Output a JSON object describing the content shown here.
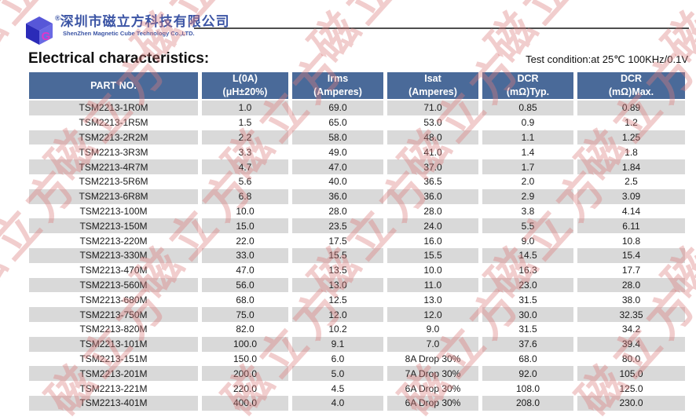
{
  "watermark": {
    "text": "磁立方",
    "color": "#dd7d7d"
  },
  "header": {
    "logo": {
      "registered_mark": "®",
      "company_cn": "深圳市磁立方科技有限公司",
      "company_en": "ShenZhen Magnetic Cube Technology Co.,LTD."
    },
    "title": "Electrical characteristics:",
    "test_condition": "Test condition:at 25℃ 100KHz/0.1V"
  },
  "table": {
    "colors": {
      "header_bg": "#4a6a99",
      "row_alt_bg": "#d9d9d9"
    },
    "columns": [
      {
        "line1": "PART NO.",
        "line2": ""
      },
      {
        "line1": "L(0A)",
        "line2": "(μH±20%)"
      },
      {
        "line1": "Irms",
        "line2": "(Amperes)"
      },
      {
        "line1": "Isat",
        "line2": "(Amperes)"
      },
      {
        "line1": "DCR",
        "line2": "(mΩ)Typ."
      },
      {
        "line1": "DCR",
        "line2": "(mΩ)Max."
      }
    ],
    "rows": [
      [
        "TSM2213-1R0M",
        "1.0",
        "69.0",
        "71.0",
        "0.85",
        "0.89"
      ],
      [
        "TSM2213-1R5M",
        "1.5",
        "65.0",
        "53.0",
        "0.9",
        "1.2"
      ],
      [
        "TSM2213-2R2M",
        "2.2",
        "58.0",
        "48.0",
        "1.1",
        "1.25"
      ],
      [
        "TSM2213-3R3M",
        "3.3",
        "49.0",
        "41.0",
        "1.4",
        "1.8"
      ],
      [
        "TSM2213-4R7M",
        "4.7",
        "47.0",
        "37.0",
        "1.7",
        "1.84"
      ],
      [
        "TSM2213-5R6M",
        "5.6",
        "40.0",
        "36.5",
        "2.0",
        "2.5"
      ],
      [
        "TSM2213-6R8M",
        "6.8",
        "36.0",
        "36.0",
        "2.9",
        "3.09"
      ],
      [
        "TSM2213-100M",
        "10.0",
        "28.0",
        "28.0",
        "3.8",
        "4.14"
      ],
      [
        "TSM2213-150M",
        "15.0",
        "23.5",
        "24.0",
        "5.5",
        "6.11"
      ],
      [
        "TSM2213-220M",
        "22.0",
        "17.5",
        "16.0",
        "9.0",
        "10.8"
      ],
      [
        "TSM2213-330M",
        "33.0",
        "15.5",
        "15.5",
        "14.5",
        "15.4"
      ],
      [
        "TSM2213-470M",
        "47.0",
        "13.5",
        "10.0",
        "16.3",
        "17.7"
      ],
      [
        "TSM2213-560M",
        "56.0",
        "13.0",
        "11.0",
        "23.0",
        "28.0"
      ],
      [
        "TSM2213-680M",
        "68.0",
        "12.5",
        "13.0",
        "31.5",
        "38.0"
      ],
      [
        "TSM2213-750M",
        "75.0",
        "12.0",
        "12.0",
        "30.0",
        "32.35"
      ],
      [
        "TSM2213-820M",
        "82.0",
        "10.2",
        "9.0",
        "31.5",
        "34.2"
      ],
      [
        "TSM2213-101M",
        "100.0",
        "9.1",
        "7.0",
        "37.6",
        "39.4"
      ],
      [
        "TSM2213-151M",
        "150.0",
        "6.0",
        "8A Drop 30%",
        "68.0",
        "80.0"
      ],
      [
        "TSM2213-201M",
        "200.0",
        "5.0",
        "7A Drop 30%",
        "92.0",
        "105.0"
      ],
      [
        "TSM2213-221M",
        "220.0",
        "4.5",
        "6A Drop 30%",
        "108.0",
        "125.0"
      ],
      [
        "TSM2213-401M",
        "400.0",
        "4.0",
        "6A Drop 30%",
        "208.0",
        "230.0"
      ]
    ]
  }
}
